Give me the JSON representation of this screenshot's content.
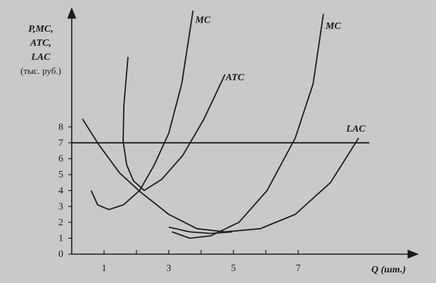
{
  "chart_data": {
    "type": "line",
    "y_label": [
      "P,MC,",
      "ATC,",
      "LAC",
      "(тыс. руб.)"
    ],
    "x_label": "Q (шт.)",
    "xlim": [
      0,
      10.6
    ],
    "ylim": [
      0,
      15.5
    ],
    "xticks": [
      1,
      3,
      5,
      7
    ],
    "xminor": [
      2,
      4,
      6
    ],
    "yticks": [
      0,
      1,
      2,
      3,
      4,
      5,
      6,
      7,
      8
    ],
    "color": "#1c1c1c",
    "series": [
      {
        "name": "MC",
        "x": [
          0.6,
          0.8,
          1.15,
          1.6,
          2.1,
          2.55,
          3.0,
          3.4,
          3.75
        ],
        "values": [
          4.0,
          3.1,
          2.8,
          3.1,
          4.0,
          5.6,
          7.6,
          10.7,
          15.3
        ]
      },
      {
        "name": "ATC",
        "x": [
          1.74,
          1.61,
          1.59,
          1.7,
          1.91,
          2.24,
          2.78,
          3.43,
          4.09,
          4.74
        ],
        "values": [
          12.4,
          9.3,
          7.1,
          5.6,
          4.6,
          4.0,
          4.7,
          6.2,
          8.5,
          11.3
        ]
      },
      {
        "name": "LAC",
        "x": [
          0.33,
          0.83,
          1.48,
          2.13,
          3.0,
          3.87,
          4.74,
          5.83,
          6.91,
          8.0,
          8.87
        ],
        "values": [
          8.5,
          6.9,
          5.1,
          3.9,
          2.5,
          1.6,
          1.4,
          1.6,
          2.5,
          4.5,
          7.3
        ]
      },
      {
        "name": "MC",
        "x": [
          3.1,
          3.65,
          4.3,
          5.17,
          6.04,
          6.91,
          7.46,
          7.78
        ],
        "values": [
          1.4,
          1.0,
          1.15,
          2.0,
          4.0,
          7.3,
          10.7,
          15.1
        ]
      },
      {
        "x": [
          3.0,
          3.65,
          4.3,
          4.96
        ],
        "values": [
          1.7,
          1.4,
          1.3,
          1.4
        ]
      },
      {
        "x": [
          0,
          9.2
        ],
        "values": [
          7,
          7
        ]
      }
    ]
  }
}
